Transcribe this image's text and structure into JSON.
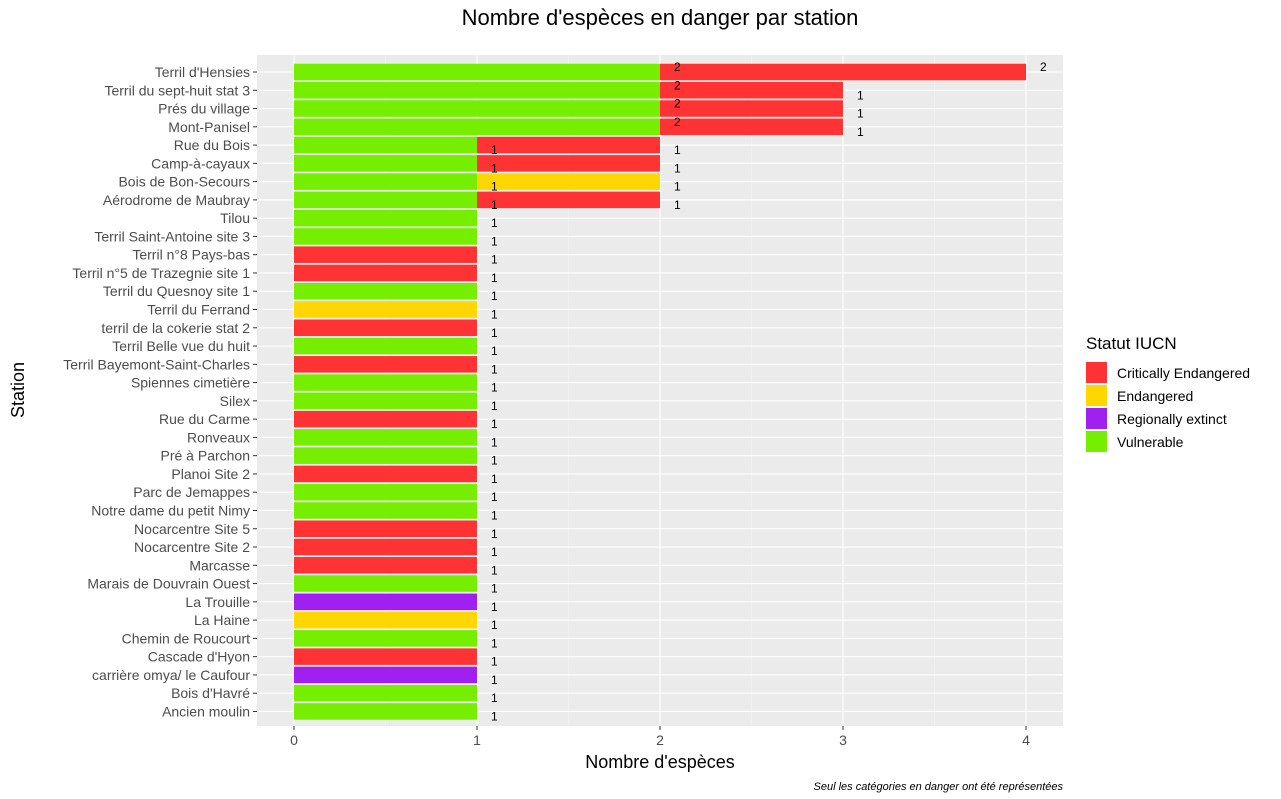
{
  "chart_data": {
    "type": "bar",
    "orientation": "horizontal",
    "stacked": true,
    "title": "Nombre d'espèces en danger par station",
    "xlabel": "Nombre d'espèces",
    "ylabel": "Station",
    "caption": "Seul les catégories en danger ont été représentées",
    "xlim": [
      0,
      4.2
    ],
    "xticks": [
      0,
      1,
      2,
      3,
      4
    ],
    "grid": true,
    "legend": {
      "title": "Statut IUCN",
      "placement": "right",
      "items": [
        {
          "name": "Critically Endangered",
          "color": "#ff3333"
        },
        {
          "name": "Endangered",
          "color": "#ffd700"
        },
        {
          "name": "Regionally extinct",
          "color": "#a020f0"
        },
        {
          "name": "Vulnerable",
          "color": "#76ee00"
        }
      ]
    },
    "categories": [
      "Terril d'Hensies",
      "Terril du sept-huit stat 3",
      "Prés du village",
      "Mont-Panisel",
      "Rue du Bois",
      "Camp-à-cayaux",
      "Bois de Bon-Secours",
      "Aérodrome de Maubray",
      "Tilou",
      "Terril Saint-Antoine site 3",
      "Terril n°8 Pays-bas",
      "Terril n°5 de Trazegnie site 1",
      "Terril du Quesnoy site 1",
      "Terril du Ferrand",
      "terril de la cokerie stat 2",
      "Terril Belle vue du huit",
      "Terril Bayemont-Saint-Charles",
      "Spiennes cimetière",
      "Silex",
      "Rue du Carme",
      "Ronveaux",
      "Pré à Parchon",
      "Planoi Site 2",
      "Parc de Jemappes",
      "Notre dame du petit Nimy",
      "Nocarcentre Site 5",
      "Nocarcentre Site 2",
      "Marcasse",
      "Marais de Douvrain Ouest",
      "La Trouille",
      "La Haine",
      "Chemin de Roucourt",
      "Cascade d'Hyon",
      "carrière omya/ le Caufour",
      "Bois d'Havré",
      "Ancien moulin"
    ],
    "series": [
      {
        "name": "Vulnerable",
        "color": "#76ee00",
        "values": [
          2,
          2,
          2,
          2,
          1,
          1,
          1,
          1,
          1,
          1,
          0,
          0,
          1,
          0,
          0,
          1,
          0,
          1,
          1,
          0,
          1,
          1,
          0,
          1,
          1,
          0,
          0,
          0,
          1,
          0,
          0,
          1,
          0,
          0,
          1,
          1
        ]
      },
      {
        "name": "Critically Endangered",
        "color": "#ff3333",
        "values": [
          2,
          1,
          1,
          1,
          1,
          1,
          0,
          1,
          0,
          0,
          1,
          1,
          0,
          0,
          1,
          0,
          1,
          0,
          0,
          1,
          0,
          0,
          1,
          0,
          0,
          1,
          1,
          1,
          0,
          0,
          0,
          0,
          1,
          0,
          0,
          0
        ]
      },
      {
        "name": "Endangered",
        "color": "#ffd700",
        "values": [
          0,
          0,
          0,
          0,
          0,
          0,
          1,
          0,
          0,
          0,
          0,
          0,
          0,
          1,
          0,
          0,
          0,
          0,
          0,
          0,
          0,
          0,
          0,
          0,
          0,
          0,
          0,
          0,
          0,
          0,
          1,
          0,
          0,
          0,
          0,
          0
        ]
      },
      {
        "name": "Regionally extinct",
        "color": "#a020f0",
        "values": [
          0,
          0,
          0,
          0,
          0,
          0,
          0,
          0,
          0,
          0,
          0,
          0,
          0,
          0,
          0,
          0,
          0,
          0,
          0,
          0,
          0,
          0,
          0,
          0,
          0,
          0,
          0,
          0,
          0,
          1,
          0,
          0,
          0,
          1,
          0,
          0
        ]
      }
    ],
    "stack_order": [
      "Vulnerable",
      "Endangered",
      "Critically Endangered",
      "Regionally extinct"
    ]
  }
}
